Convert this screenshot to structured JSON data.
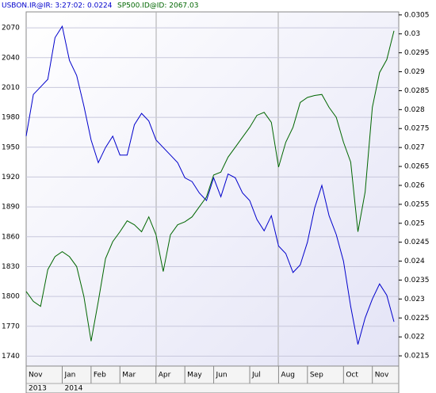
{
  "chart_data": {
    "type": "line",
    "categories": [
      "Nov",
      null,
      null,
      null,
      null,
      "Jan",
      null,
      null,
      null,
      "Feb",
      null,
      null,
      null,
      "Mar",
      null,
      null,
      null,
      null,
      "Apr",
      null,
      null,
      null,
      "May",
      null,
      null,
      null,
      "Jun",
      null,
      null,
      null,
      null,
      "Jul",
      null,
      null,
      null,
      "Aug",
      null,
      null,
      null,
      "Sep",
      null,
      null,
      null,
      null,
      "Oct",
      null,
      null,
      null,
      "Nov",
      null,
      null,
      null
    ],
    "category_years": [
      "2013",
      null,
      null,
      null,
      null,
      "2014",
      null,
      null,
      null,
      null,
      null,
      null,
      null,
      null,
      null,
      null,
      null,
      null,
      null,
      null,
      null,
      null,
      null,
      null,
      null,
      null,
      null,
      null,
      null,
      null,
      null,
      null,
      null,
      null,
      null,
      null,
      null,
      null,
      null,
      null,
      null,
      null,
      null,
      null,
      null,
      null,
      null,
      null,
      null,
      null,
      null,
      null
    ],
    "series": [
      {
        "name": "USBON.IR@IR: 3:27:02:  0.0224",
        "color": "#0000cc",
        "axis": "y2",
        "values": [
          0.0273,
          0.0284,
          0.0286,
          0.0288,
          0.0299,
          0.0302,
          0.0293,
          0.0289,
          0.0281,
          0.0272,
          0.0266,
          0.027,
          0.0273,
          0.0268,
          0.0268,
          0.0276,
          0.0279,
          0.0277,
          0.0272,
          0.027,
          0.0268,
          0.0266,
          0.0262,
          0.0261,
          0.0258,
          0.0256,
          0.0262,
          0.0257,
          0.0263,
          0.0262,
          0.0258,
          0.0256,
          0.0251,
          0.0248,
          0.0252,
          0.0244,
          0.0242,
          0.0237,
          0.0239,
          0.0245,
          0.0254,
          0.026,
          0.0252,
          0.0247,
          0.024,
          0.0228,
          0.0218,
          0.0225,
          0.023,
          0.0234,
          0.0231,
          0.0224
        ]
      },
      {
        "name": "SP500.ID@ID:  2067.03",
        "color": "#006600",
        "values": [
          1805,
          1795,
          1790,
          1827,
          1840,
          1845,
          1840,
          1830,
          1800,
          1755,
          1795,
          1838,
          1855,
          1865,
          1876,
          1872,
          1865,
          1880,
          1862,
          1825,
          1862,
          1872,
          1875,
          1880,
          1890,
          1900,
          1922,
          1925,
          1940,
          1950,
          1960,
          1970,
          1982,
          1985,
          1975,
          1930,
          1955,
          1970,
          1995,
          2000,
          2002,
          2003,
          1990,
          1980,
          1955,
          1935,
          1865,
          1905,
          1990,
          2025,
          2038,
          2067
        ]
      }
    ],
    "ylim": [
      1730,
      2086
    ],
    "yticks": [
      1740,
      1770,
      1800,
      1830,
      1860,
      1890,
      1920,
      1950,
      1980,
      2010,
      2040,
      2070
    ],
    "y2lim": [
      0.02123,
      0.03058
    ],
    "y2ticks": [
      0.0215,
      0.022,
      0.0225,
      0.023,
      0.0235,
      0.024,
      0.0245,
      0.025,
      0.0255,
      0.026,
      0.0265,
      0.027,
      0.0275,
      0.028,
      0.0285,
      0.029,
      0.0295,
      0.03,
      0.0305
    ],
    "grid": true
  }
}
